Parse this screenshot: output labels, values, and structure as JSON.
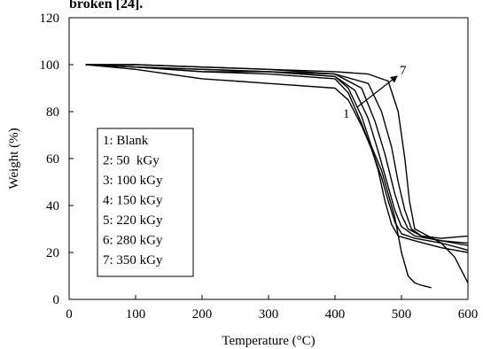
{
  "caption_fragment": "broken [24].",
  "chart_data": {
    "type": "line",
    "title": "",
    "xlabel": "Temperature (°C)",
    "ylabel": "Weight (%)",
    "xlim": [
      0,
      600
    ],
    "ylim": [
      0,
      120
    ],
    "x_ticks": [
      0,
      100,
      200,
      300,
      400,
      500,
      600
    ],
    "y_ticks": [
      0,
      20,
      40,
      60,
      80,
      100,
      120
    ],
    "grid": false,
    "legend_position": "left",
    "legend": [
      "1: Blank",
      "2: 50  kGy",
      "3: 100 kGy",
      "4: 150 kGy",
      "5: 220 kGy",
      "6: 280 kGy",
      "7: 350 kGy"
    ],
    "annotation": {
      "from_label": "1",
      "to_label": "7"
    },
    "series": [
      {
        "name": "1: Blank",
        "x": [
          25,
          100,
          200,
          300,
          400,
          420,
          440,
          455,
          470,
          480,
          490,
          500,
          510,
          520,
          530,
          545
        ],
        "y": [
          100,
          99,
          98,
          97,
          95,
          90,
          78,
          65,
          55,
          45,
          35,
          20,
          10,
          7,
          6,
          5
        ]
      },
      {
        "name": "2: 50  kGy",
        "x": [
          25,
          100,
          200,
          250,
          300,
          400,
          420,
          440,
          455,
          465,
          475,
          485,
          495,
          520,
          560,
          600
        ],
        "y": [
          100,
          98,
          94,
          93,
          92,
          90,
          85,
          74,
          64,
          55,
          42,
          32,
          27,
          25,
          22,
          20
        ]
      },
      {
        "name": "3: 100 kGy",
        "x": [
          25,
          100,
          200,
          300,
          400,
          420,
          440,
          455,
          470,
          480,
          490,
          500,
          520,
          560,
          600
        ],
        "y": [
          100,
          99,
          97,
          96,
          94,
          88,
          75,
          64,
          52,
          42,
          33,
          28,
          26,
          24,
          21
        ]
      },
      {
        "name": "4: 150 kGy",
        "x": [
          25,
          100,
          200,
          300,
          400,
          430,
          450,
          465,
          480,
          490,
          500,
          520,
          560,
          600
        ],
        "y": [
          100,
          99,
          97,
          97,
          95,
          89,
          77,
          63,
          48,
          38,
          31,
          27,
          25,
          23
        ]
      },
      {
        "name": "5: 220 kGy",
        "x": [
          25,
          100,
          200,
          300,
          400,
          440,
          460,
          475,
          490,
          500,
          510,
          530,
          560,
          600
        ],
        "y": [
          100,
          99,
          98,
          97,
          96,
          90,
          76,
          62,
          45,
          36,
          30,
          27,
          25,
          24
        ]
      },
      {
        "name": "6: 280 kGy",
        "x": [
          25,
          100,
          200,
          300,
          400,
          450,
          470,
          485,
          495,
          505,
          515,
          530,
          560,
          600
        ],
        "y": [
          100,
          100,
          99,
          98,
          96,
          92,
          80,
          65,
          50,
          38,
          30,
          27,
          26,
          27
        ]
      },
      {
        "name": "7: 350 kGy",
        "x": [
          25,
          100,
          200,
          300,
          400,
          450,
          480,
          495,
          505,
          512,
          520,
          540,
          560,
          580,
          600
        ],
        "y": [
          100,
          100,
          99,
          98,
          97,
          96,
          93,
          80,
          60,
          42,
          30,
          27,
          24,
          18,
          7
        ]
      }
    ]
  }
}
